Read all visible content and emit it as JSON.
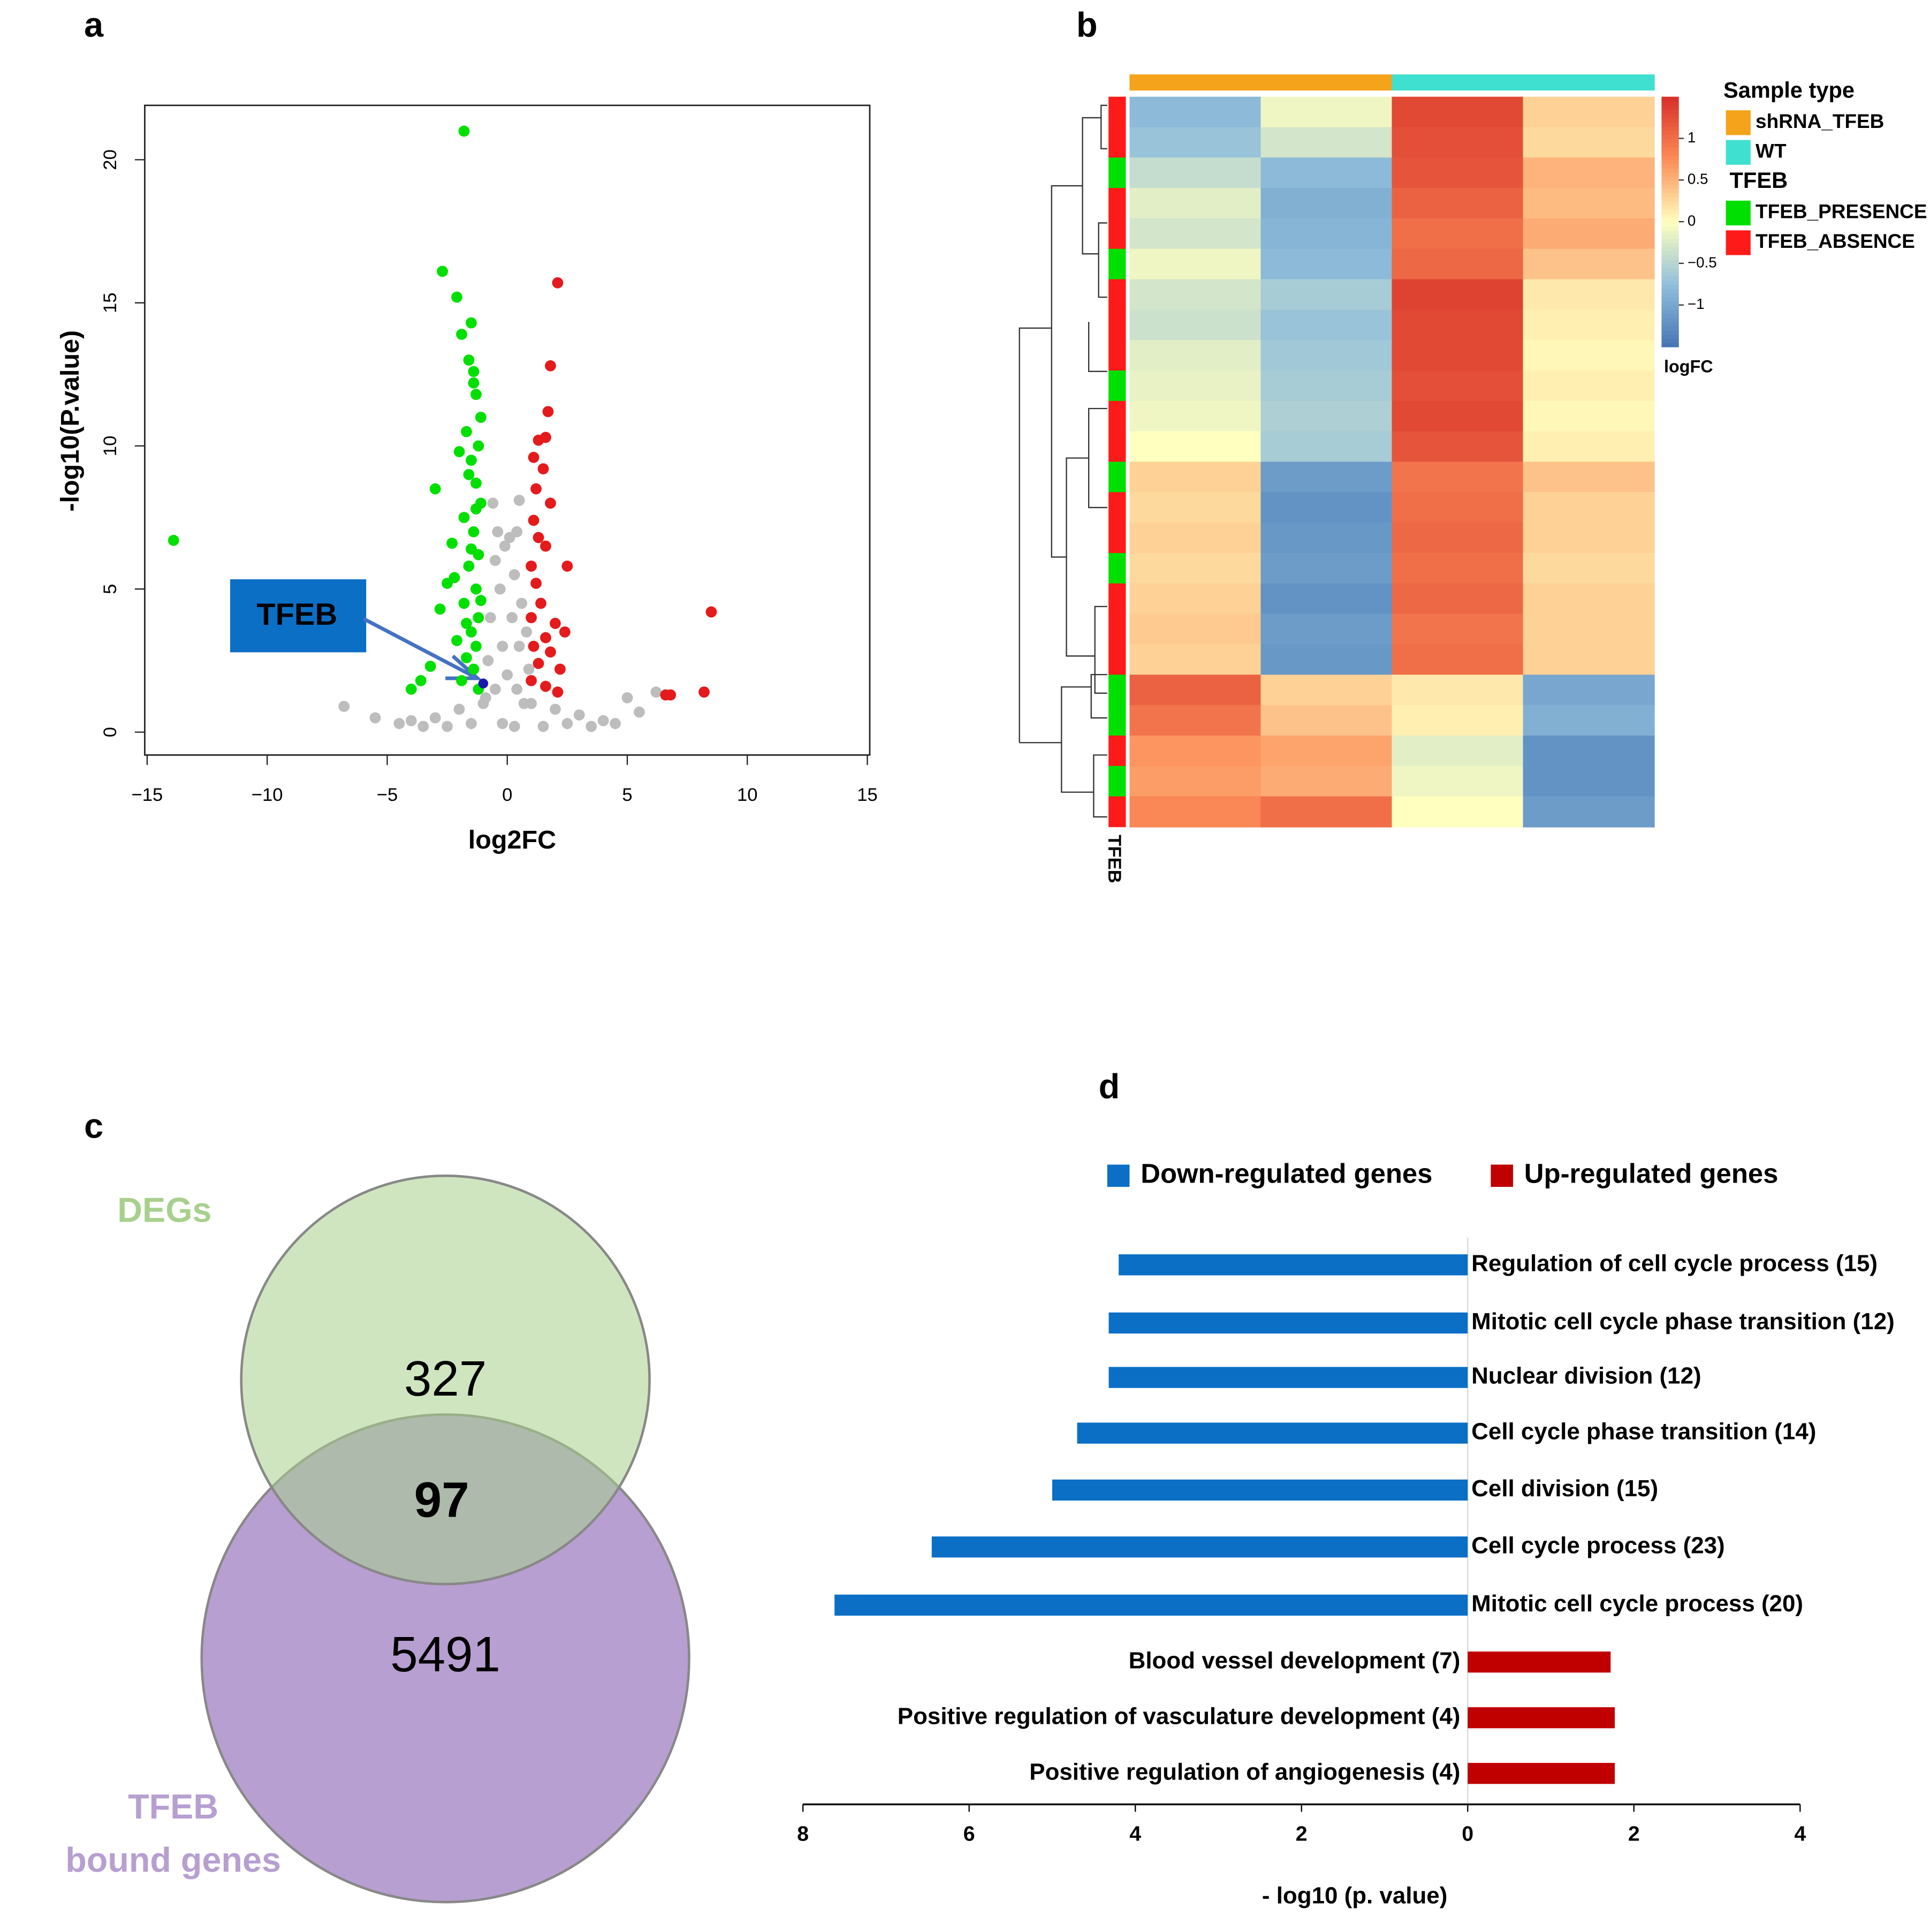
{
  "chart_data": [
    {
      "type": "scatter",
      "label": "a",
      "xlabel": "log2FC",
      "ylabel": "-log10(P.value)",
      "annotation": "TFEB",
      "xlim": [
        -15.1,
        15.1
      ],
      "ylim": [
        -0.8,
        21.9
      ],
      "xticks": [
        {
          "value": -15,
          "label": "−15"
        },
        {
          "value": -10,
          "label": "−10"
        },
        {
          "value": -5,
          "label": "−5"
        },
        0,
        5,
        10,
        15
      ],
      "yticks": [
        0,
        5,
        10,
        15,
        20
      ],
      "series": [
        {
          "color": "#bdbdbd",
          "x": [
            -0.6,
            0.5,
            -0.4,
            0.4,
            -0.5,
            0.3,
            -0.3,
            0.6,
            -0.7,
            0.2,
            0.8,
            -0.2,
            0.5,
            -0.8,
            0,
            0.9,
            -0.5,
            0.4,
            -1,
            1,
            -2,
            2,
            -3,
            3,
            -4,
            4,
            -5.5,
            5,
            5.5,
            -6.8,
            -0.2,
            0.3,
            -1.5,
            1.5,
            -2.5,
            2.5,
            3.5,
            -3.5,
            6.2,
            -4.5,
            4.5,
            -0.1,
            0.1,
            -0.9,
            0.7
          ],
          "values": [
            8,
            8.1,
            7,
            7,
            6,
            5.5,
            5,
            4.5,
            4,
            4,
            3.5,
            3,
            3,
            2.5,
            2,
            2.2,
            1.5,
            1.5,
            1,
            1,
            0.8,
            0.8,
            0.5,
            0.6,
            0.4,
            0.4,
            0.5,
            1.2,
            0.7,
            0.9,
            0.3,
            0.2,
            0.3,
            0.2,
            0.2,
            0.3,
            0.2,
            0.2,
            1.4,
            0.3,
            0.3,
            6.5,
            6.8,
            1.2,
            1.0
          ]
        },
        {
          "color": "#00e000",
          "x": [
            -13.9,
            -1.8,
            -2.7,
            -2.1,
            -1.5,
            -1.6,
            -1.4,
            -1.3,
            -1.7,
            -1.2,
            -1.5,
            -1.3,
            -1.1,
            -3,
            -1.8,
            -1.4,
            -2.3,
            -1.2,
            -1.6,
            -2.5,
            -1.3,
            -1.8,
            -2.8,
            -1.2,
            -1.5,
            -2.1,
            -1.3,
            -1.7,
            -3.2,
            -3.6,
            -4,
            -1.4,
            -1.9,
            -1.2,
            -1.9,
            -1.4,
            -1.1,
            -2.0,
            -1.6,
            -1.3,
            -1.5,
            -2.2,
            -1.1,
            -1.7
          ],
          "values": [
            6.7,
            21,
            16.1,
            15.2,
            14.3,
            13,
            12.6,
            11.8,
            10.5,
            10,
            9.5,
            8.7,
            8,
            8.5,
            7.5,
            7,
            6.6,
            6.2,
            5.8,
            5.2,
            5,
            4.5,
            4.3,
            4,
            3.5,
            3.2,
            3,
            2.6,
            2.3,
            1.8,
            1.5,
            2.2,
            1.8,
            1.5,
            13.9,
            12.2,
            11,
            9.8,
            9,
            7.8,
            6.4,
            5.4,
            4.6,
            3.8
          ]
        },
        {
          "color": "#e41a1c",
          "x": [
            2.1,
            1.8,
            1.7,
            1.3,
            1.6,
            1.1,
            1.5,
            1.2,
            1.8,
            1.1,
            1.3,
            1.6,
            1.0,
            2.5,
            1.2,
            1.4,
            1.0,
            2.0,
            1.6,
            2.4,
            1.1,
            1.8,
            1.3,
            2.2,
            1.0,
            1.6,
            2.1,
            8.5,
            6.8,
            8.2,
            6.6
          ],
          "values": [
            15.7,
            12.8,
            11.2,
            10.2,
            10.3,
            9.6,
            9.2,
            8.5,
            8.0,
            7.4,
            6.8,
            6.5,
            5.8,
            5.8,
            5.2,
            4.5,
            4.0,
            3.8,
            3.3,
            3.5,
            3.0,
            2.8,
            2.4,
            2.2,
            1.8,
            1.6,
            1.4,
            4.2,
            1.3,
            1.4,
            1.3
          ]
        },
        {
          "color": "#1a1aa8",
          "x": [
            -1.0
          ],
          "values": [
            1.7
          ]
        }
      ]
    },
    {
      "type": "heatmap",
      "label": "b",
      "row_annotation_label": "TFEB",
      "colorbar_label": "logFC",
      "zlim": [
        -1.5,
        1.5
      ],
      "zticks": [
        1,
        0.5,
        0,
        {
          "value": -0.5,
          "label": "−0.5"
        },
        {
          "value": -1,
          "label": "−1"
        }
      ],
      "colorscale": [
        "#4575b4",
        "#91bfdb",
        "#ffffbf",
        "#fc8d59",
        "#d73027"
      ],
      "legend": [
        {
          "title": "Sample type",
          "items": [
            {
              "name": "shRNA_TFEB",
              "color": "#f5a31a"
            },
            {
              "name": "WT",
              "color": "#40e0d0"
            }
          ]
        },
        {
          "title": "TFEB",
          "items": [
            {
              "name": "TFEB_PRESENCE",
              "color": "#00e000"
            },
            {
              "name": "TFEB_ABSENCE",
              "color": "#ff1a1a"
            }
          ]
        }
      ],
      "column_groups": [
        0,
        0,
        1,
        1
      ],
      "row_annotation": [
        1,
        1,
        0,
        1,
        1,
        0,
        1,
        1,
        1,
        0,
        1,
        1,
        0,
        1,
        1,
        0,
        1,
        1,
        1,
        0,
        0,
        1,
        0,
        1
      ],
      "values": [
        [
          -0.8,
          -0.1,
          1.3,
          0.3
        ],
        [
          -0.7,
          -0.3,
          1.25,
          0.25
        ],
        [
          -0.4,
          -0.8,
          1.2,
          0.5
        ],
        [
          -0.2,
          -0.9,
          1.1,
          0.45
        ],
        [
          -0.3,
          -0.85,
          1.0,
          0.55
        ],
        [
          -0.1,
          -0.8,
          1.05,
          0.4
        ],
        [
          -0.3,
          -0.6,
          1.35,
          0.15
        ],
        [
          -0.35,
          -0.7,
          1.3,
          0.1
        ],
        [
          -0.2,
          -0.65,
          1.3,
          0.05
        ],
        [
          -0.15,
          -0.6,
          1.25,
          0.1
        ],
        [
          -0.1,
          -0.55,
          1.3,
          0.05
        ],
        [
          0.0,
          -0.6,
          1.2,
          0.1
        ],
        [
          0.3,
          -1.1,
          0.95,
          0.4
        ],
        [
          0.25,
          -1.2,
          1.0,
          0.3
        ],
        [
          0.3,
          -1.15,
          1.05,
          0.3
        ],
        [
          0.25,
          -1.1,
          1.0,
          0.25
        ],
        [
          0.3,
          -1.2,
          1.05,
          0.3
        ],
        [
          0.35,
          -1.1,
          0.95,
          0.3
        ],
        [
          0.3,
          -1.15,
          1.0,
          0.3
        ],
        [
          1.1,
          0.3,
          0.15,
          -1.0
        ],
        [
          0.95,
          0.4,
          0.1,
          -0.9
        ],
        [
          0.7,
          0.6,
          -0.2,
          -1.2
        ],
        [
          0.65,
          0.55,
          -0.1,
          -1.2
        ],
        [
          0.8,
          1.0,
          0.0,
          -1.1
        ]
      ]
    },
    {
      "type": "venn",
      "label": "c",
      "sets": [
        {
          "label": [
            "DEGs"
          ],
          "color": "#a8d08d"
        },
        {
          "label": [
            "TFEB",
            "bound genes"
          ],
          "color": "#b79fd1"
        }
      ],
      "values": [
        327,
        97,
        5491
      ]
    },
    {
      "type": "hbar",
      "label": "d",
      "xlabel": "- log10 (p. value)",
      "xlim": [
        -8,
        4
      ],
      "xticks": [
        {
          "value": -8,
          "label": "8"
        },
        {
          "value": -6,
          "label": "6"
        },
        {
          "value": -4,
          "label": "4"
        },
        {
          "value": -2,
          "label": "2"
        },
        0,
        2,
        4
      ],
      "categories": [
        "Regulation of cell cycle process (15)",
        "Mitotic cell cycle phase transition (12)",
        "Nuclear division (12)",
        "Cell cycle phase transition (14)",
        "Cell division (15)",
        "Cell cycle process (23)",
        "Mitotic cell cycle process (20)",
        "Blood vessel development (7)",
        "Positive regulation of vasculature development (4)",
        "Positive regulation of angiogenesis (4)"
      ],
      "series": [
        {
          "name": "Down-regulated genes",
          "color": "#0b6fc6",
          "values": [
            -4.2,
            -4.32,
            -4.32,
            -4.7,
            -5.0,
            -6.45,
            -7.62,
            null,
            null,
            null
          ]
        },
        {
          "name": "Up-regulated genes",
          "color": "#c00000",
          "values": [
            null,
            null,
            null,
            null,
            null,
            null,
            null,
            1.72,
            1.77,
            1.77
          ]
        }
      ]
    }
  ]
}
